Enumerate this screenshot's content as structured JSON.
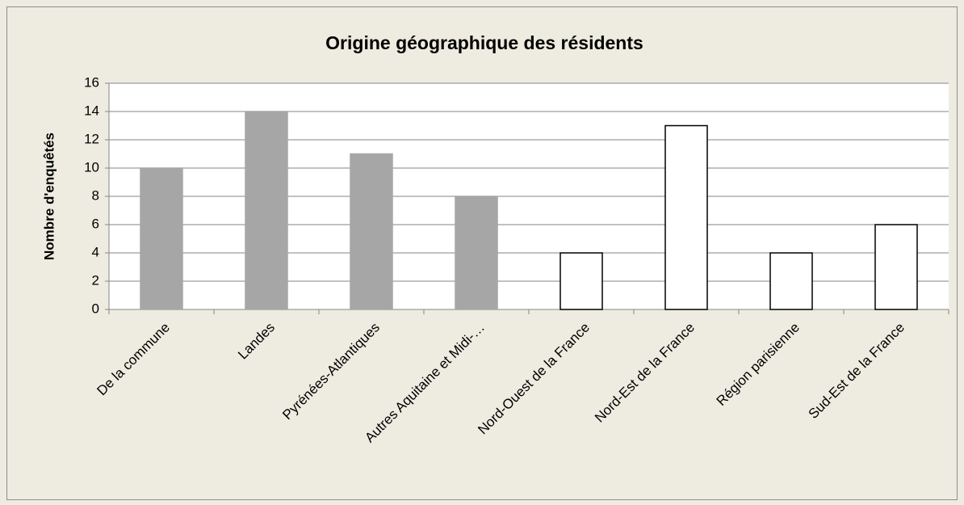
{
  "chart_data": {
    "type": "bar",
    "title": "Origine géographique des résidents",
    "y_label": "Nombre d'enquêtés",
    "categories": [
      "De la commune",
      "Landes",
      "Pyrénées-Atlantiques",
      "Autres Aquitaine et Midi-…",
      "Nord-Ouest de la France",
      "Nord-Est de la France",
      "Région parisienne",
      "Sud-Est de la France"
    ],
    "values": [
      10,
      14,
      11,
      8,
      4,
      13,
      4,
      6
    ],
    "colors": [
      "#a6a6a6",
      "#a6a6a6",
      "#a6a6a6",
      "#a6a6a6",
      "#ffffff",
      "#ffffff",
      "#ffffff",
      "#ffffff"
    ],
    "edgecolors": [
      "#a6a6a6",
      "#a6a6a6",
      "#a6a6a6",
      "#a6a6a6",
      "#000000",
      "#000000",
      "#000000",
      "#000000"
    ],
    "ylim": [
      0,
      16
    ],
    "yticks": [
      0,
      2,
      4,
      6,
      8,
      10,
      12,
      14,
      16
    ],
    "grid": true
  }
}
